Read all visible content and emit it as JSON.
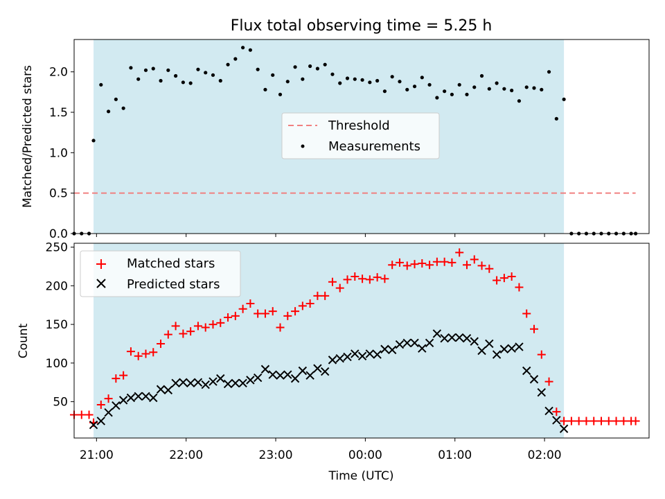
{
  "chart_data": [
    {
      "type": "scatter",
      "title": "Flux total observing time = 5.25 h",
      "xlabel": "",
      "ylabel": "Matched/Predicted stars",
      "ylim": [
        0,
        2.4
      ],
      "yticks": [
        0.0,
        0.5,
        1.0,
        1.5,
        2.0
      ],
      "yticklabels": [
        "0.0",
        "0.5",
        "1.0",
        "1.5",
        "2.0"
      ],
      "xlim_minutes_after_20_00": [
        45,
        430
      ],
      "shaded_span_minutes": [
        58,
        373
      ],
      "shade_color": "#add8e6",
      "legend_position": "center",
      "threshold": {
        "name": "Threshold",
        "value": 0.5,
        "x_range_minutes": [
          45,
          421
        ],
        "color": "#f08080"
      },
      "series": [
        {
          "name": "Measurements",
          "color": "#000000",
          "x_minutes": [
            45,
            50,
            55,
            58,
            63,
            68,
            73,
            78,
            83,
            88,
            93,
            98,
            103,
            108,
            113,
            118,
            123,
            128,
            133,
            138,
            143,
            148,
            153,
            158,
            163,
            168,
            173,
            178,
            183,
            188,
            193,
            198,
            203,
            208,
            213,
            218,
            223,
            228,
            233,
            238,
            243,
            248,
            253,
            258,
            263,
            268,
            273,
            278,
            283,
            288,
            293,
            298,
            303,
            308,
            313,
            318,
            323,
            328,
            333,
            338,
            343,
            348,
            353,
            358,
            363,
            368,
            373,
            378,
            383,
            388,
            393,
            398,
            403,
            408,
            413,
            418,
            421
          ],
          "values": [
            0,
            0,
            0,
            1.15,
            1.84,
            1.51,
            1.66,
            1.55,
            2.05,
            1.91,
            2.02,
            2.04,
            1.89,
            2.02,
            1.95,
            1.87,
            1.86,
            2.03,
            1.99,
            1.96,
            1.89,
            2.09,
            2.16,
            2.3,
            2.27,
            2.03,
            1.78,
            1.96,
            1.72,
            1.88,
            2.06,
            1.91,
            2.07,
            2.04,
            2.09,
            1.97,
            1.86,
            1.92,
            1.91,
            1.9,
            1.87,
            1.89,
            1.76,
            1.94,
            1.88,
            1.78,
            1.82,
            1.93,
            1.84,
            1.68,
            1.76,
            1.72,
            1.84,
            1.72,
            1.81,
            1.95,
            1.79,
            1.86,
            1.79,
            1.77,
            1.64,
            1.81,
            1.8,
            1.78,
            2.0,
            1.42,
            1.66,
            0,
            0,
            0,
            0,
            0,
            0,
            0,
            0,
            0,
            0
          ]
        }
      ]
    },
    {
      "type": "scatter",
      "title": "",
      "xlabel": "Time (UTC)",
      "ylabel": "Count",
      "ylim": [
        3,
        255
      ],
      "yticks": [
        50,
        100,
        150,
        200,
        250
      ],
      "yticklabels": [
        "50",
        "100",
        "150",
        "200",
        "250"
      ],
      "xlim_minutes_after_20_00": [
        45,
        430
      ],
      "xticks_minutes": [
        60,
        120,
        180,
        240,
        300,
        360
      ],
      "xticklabels": [
        "21:00",
        "22:00",
        "23:00",
        "00:00",
        "01:00",
        "02:00"
      ],
      "shaded_span_minutes": [
        58,
        373
      ],
      "shade_color": "#add8e6",
      "legend_position": "upper left",
      "series": [
        {
          "name": "Matched stars",
          "marker": "plus",
          "color": "#ff0000",
          "x_minutes": [
            45,
            50,
            55,
            58,
            63,
            68,
            73,
            78,
            83,
            88,
            93,
            98,
            103,
            108,
            113,
            118,
            123,
            128,
            133,
            138,
            143,
            148,
            153,
            158,
            163,
            168,
            173,
            178,
            183,
            188,
            193,
            198,
            203,
            208,
            213,
            218,
            223,
            228,
            233,
            238,
            243,
            248,
            253,
            258,
            263,
            268,
            273,
            278,
            283,
            288,
            293,
            298,
            303,
            308,
            313,
            318,
            323,
            328,
            333,
            338,
            343,
            348,
            353,
            358,
            363,
            368,
            373,
            378,
            383,
            388,
            393,
            398,
            403,
            408,
            413,
            418,
            421
          ],
          "values": [
            33,
            33,
            33,
            23,
            46,
            54,
            80,
            84,
            115,
            109,
            112,
            114,
            125,
            137,
            148,
            138,
            141,
            148,
            146,
            150,
            152,
            159,
            161,
            170,
            177,
            164,
            164,
            167,
            146,
            161,
            167,
            174,
            177,
            187,
            187,
            205,
            197,
            208,
            212,
            209,
            208,
            211,
            209,
            227,
            230,
            226,
            228,
            229,
            227,
            231,
            231,
            230,
            243,
            227,
            234,
            226,
            222,
            207,
            210,
            212,
            198,
            164,
            144,
            111,
            76,
            37,
            25,
            25,
            25,
            25,
            25,
            25,
            25,
            25,
            25,
            25,
            25
          ]
        },
        {
          "name": "Predicted stars",
          "marker": "x",
          "color": "#000000",
          "x_minutes": [
            58,
            63,
            68,
            73,
            78,
            83,
            88,
            93,
            98,
            103,
            108,
            113,
            118,
            123,
            128,
            133,
            138,
            143,
            148,
            153,
            158,
            163,
            168,
            173,
            178,
            183,
            188,
            193,
            198,
            203,
            208,
            213,
            218,
            223,
            228,
            233,
            238,
            243,
            248,
            253,
            258,
            263,
            268,
            273,
            278,
            283,
            288,
            293,
            298,
            303,
            308,
            313,
            318,
            323,
            328,
            333,
            338,
            343,
            348,
            353,
            358,
            363,
            368,
            373
          ],
          "values": [
            20,
            25,
            36,
            45,
            52,
            55,
            57,
            57,
            55,
            66,
            65,
            74,
            75,
            74,
            75,
            72,
            76,
            80,
            73,
            74,
            74,
            78,
            81,
            92,
            85,
            84,
            85,
            80,
            90,
            84,
            93,
            89,
            104,
            106,
            108,
            112,
            109,
            112,
            111,
            118,
            117,
            124,
            126,
            126,
            119,
            126,
            138,
            132,
            133,
            133,
            132,
            128,
            116,
            125,
            111,
            118,
            119,
            121,
            90,
            79,
            62,
            38,
            26,
            15
          ]
        }
      ]
    }
  ]
}
